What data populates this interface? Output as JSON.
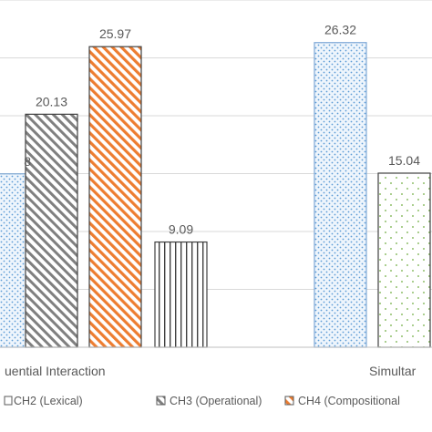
{
  "chart_data": {
    "type": "bar",
    "categories": [
      "Sequential Interaction",
      "Simultaneous Interaction"
    ],
    "visible_category_labels": [
      "uential Interaction",
      "Simultar"
    ],
    "ylim": [
      0,
      30
    ],
    "grid": true,
    "legend_position": "bottom",
    "series": [
      {
        "name": "",
        "values": [
          14.98,
          26.32
        ],
        "labels": [
          "8",
          "26.32"
        ],
        "pattern": "dots-blue",
        "color": "#5b9bd5"
      },
      {
        "name": "CH2 (Lexical)",
        "values": [
          null,
          15.04
        ],
        "labels": [
          "",
          "15.04"
        ],
        "pattern": "dots-green",
        "color": "#70ad47"
      },
      {
        "name": "CH3 (Operational)",
        "values": [
          20.13,
          null
        ],
        "labels": [
          "20.13",
          ""
        ],
        "pattern": "diagonal-gray",
        "color": "#7f7f7f"
      },
      {
        "name": "CH4 (Compositional",
        "values": [
          25.97,
          null
        ],
        "labels": [
          "25.97",
          ""
        ],
        "pattern": "diagonal-orange",
        "color": "#ed7d31"
      },
      {
        "name": "",
        "values": [
          9.09,
          null
        ],
        "labels": [
          "9.09",
          ""
        ],
        "pattern": "vertical-gray",
        "color": "#595959"
      }
    ]
  }
}
